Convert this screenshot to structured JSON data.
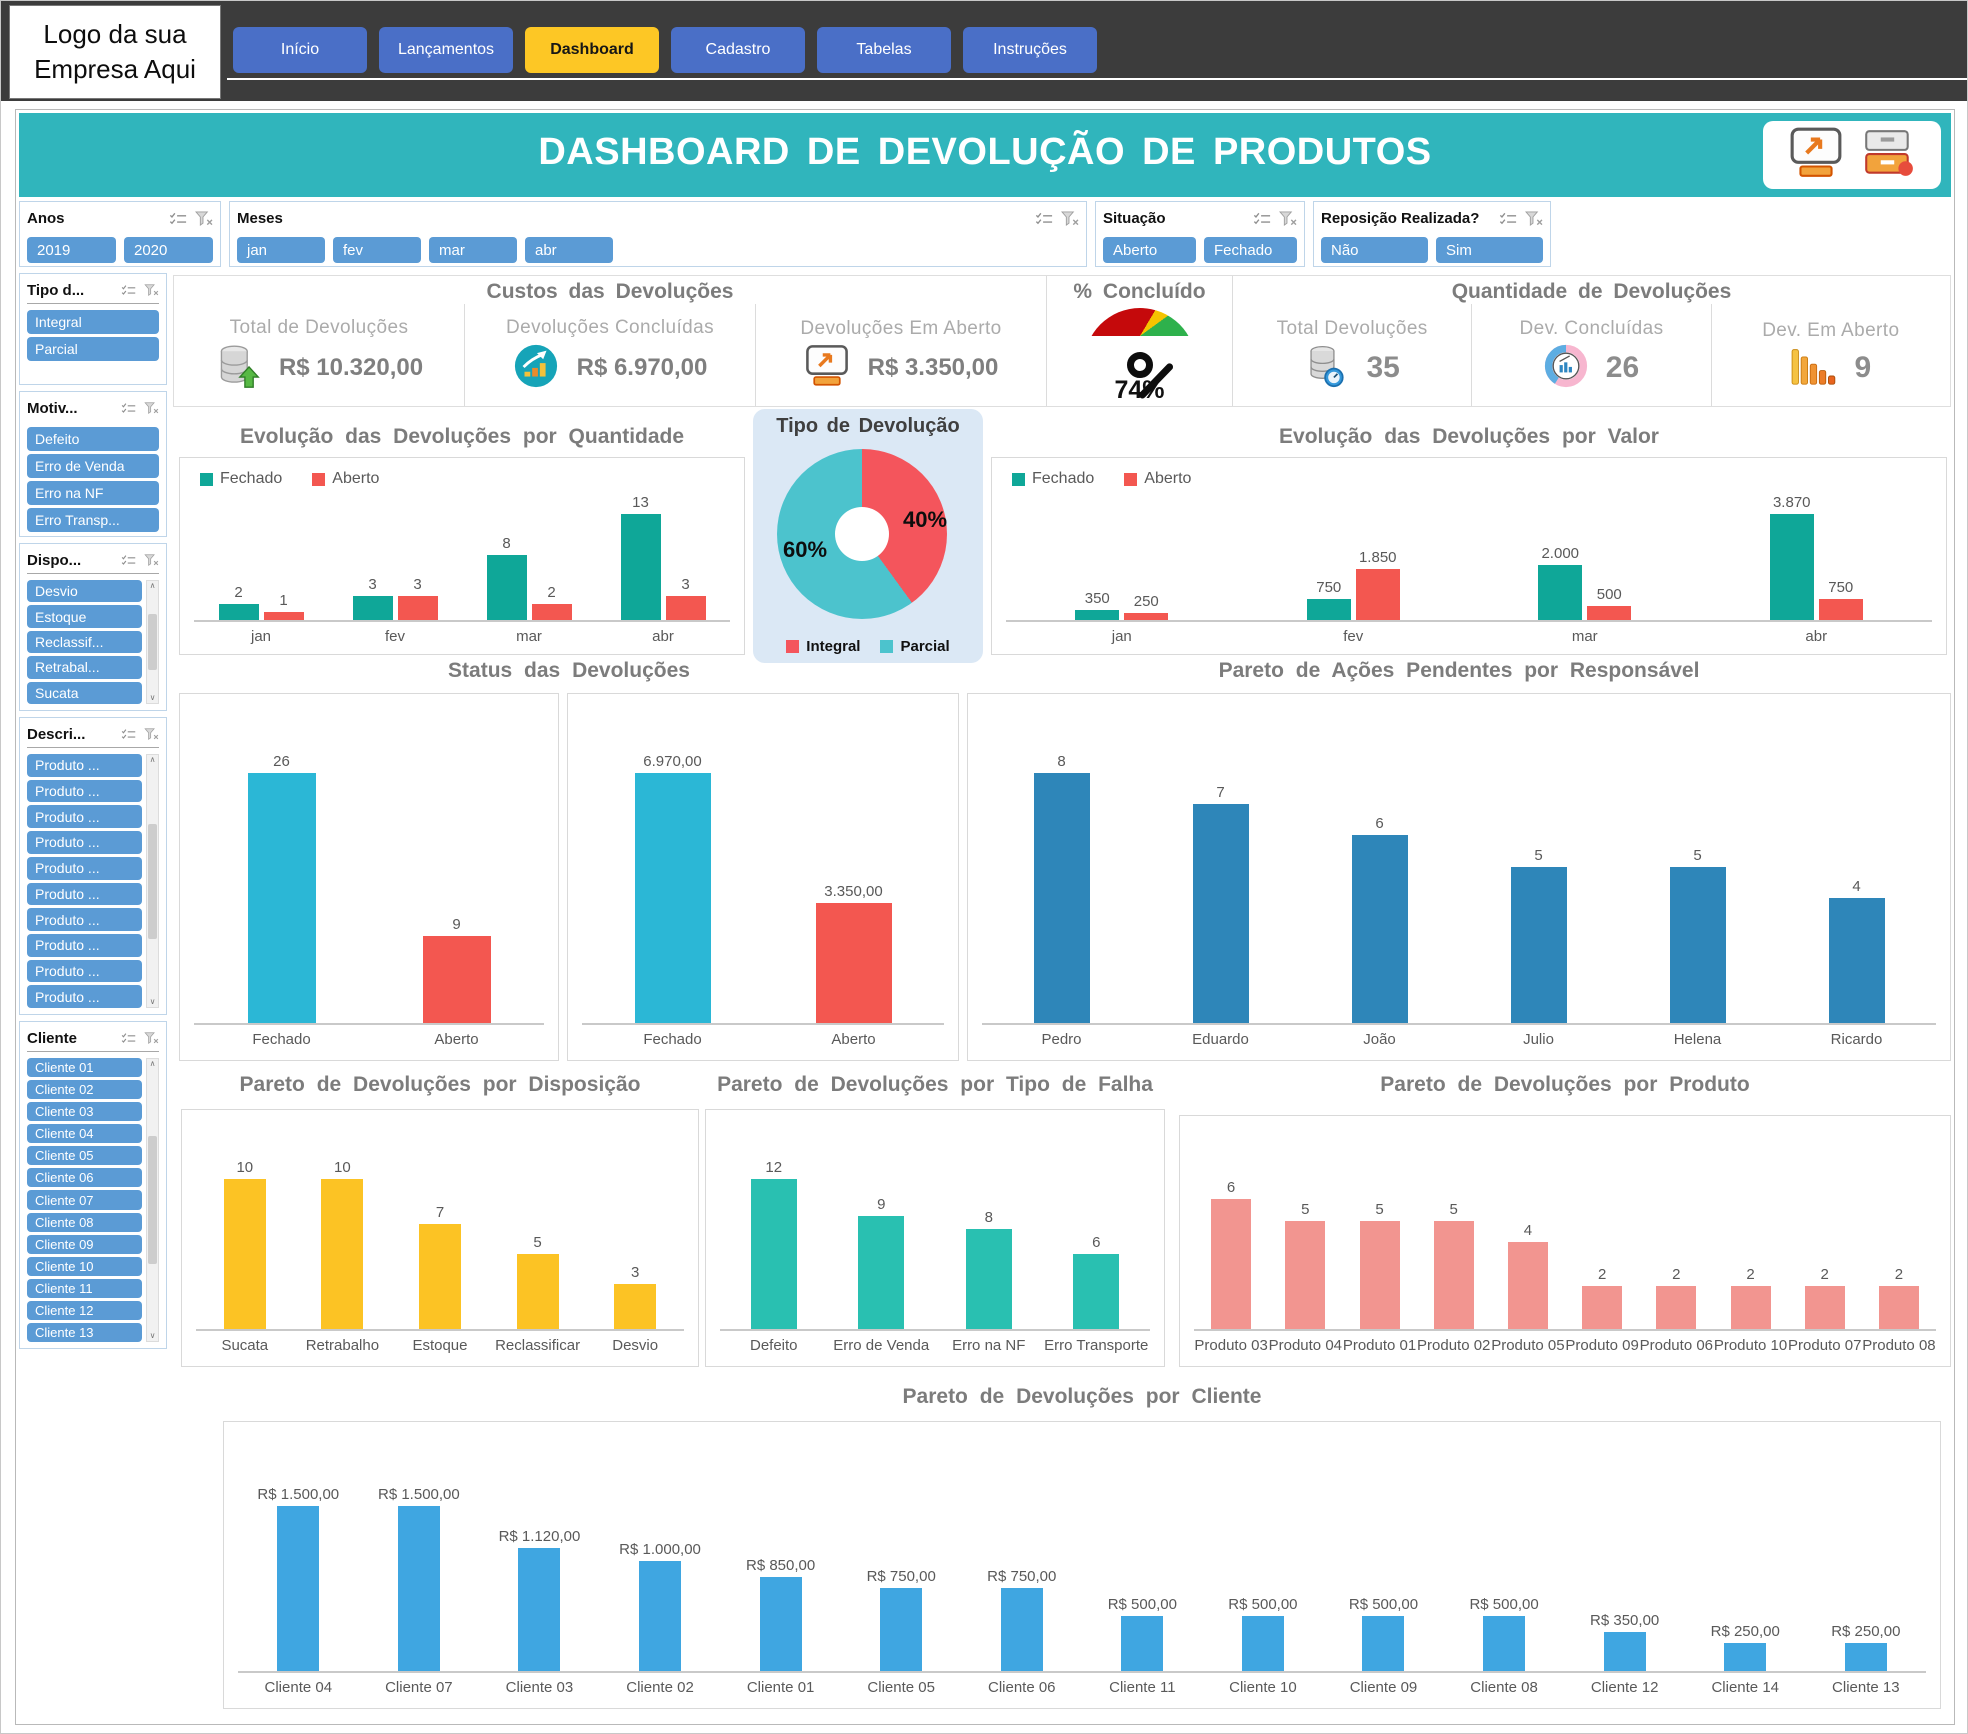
{
  "header": {
    "logo_line1": "Logo da sua",
    "logo_line2": "Empresa Aqui",
    "tabs": [
      {
        "label": "Início",
        "active": false
      },
      {
        "label": "Lançamentos",
        "active": false
      },
      {
        "label": "Dashboard",
        "active": true
      },
      {
        "label": "Cadastro",
        "active": false
      },
      {
        "label": "Tabelas",
        "active": false
      },
      {
        "label": "Instruções",
        "active": false
      }
    ]
  },
  "banner": {
    "title": "DASHBOARD DE DEVOLUÇÃO DE PRODUTOS",
    "color": "#30b5bc",
    "icons": [
      "monitor-arrow-icon",
      "drawer-cabinet-icon"
    ]
  },
  "filters": {
    "anos": {
      "title": "Anos",
      "items": [
        "2019",
        "2020"
      ]
    },
    "meses": {
      "title": "Meses",
      "items": [
        "jan",
        "fev",
        "mar",
        "abr"
      ]
    },
    "situacao": {
      "title": "Situação",
      "items": [
        "Aberto",
        "Fechado"
      ]
    },
    "reposicao": {
      "title": "Reposição Realizada?",
      "items": [
        "Não",
        "Sim"
      ]
    }
  },
  "sidebar": {
    "tipo": {
      "title": "Tipo d...",
      "items": [
        "Integral",
        "Parcial"
      ]
    },
    "motivo": {
      "title": "Motiv...",
      "items": [
        "Defeito",
        "Erro de Venda",
        "Erro na NF",
        "Erro Transp..."
      ]
    },
    "disposicao": {
      "title": "Dispo...",
      "items": [
        "Desvio",
        "Estoque",
        "Reclassif...",
        "Retrabal...",
        "Sucata"
      ]
    },
    "descricao": {
      "title": "Descri...",
      "items": [
        "Produto ...",
        "Produto ...",
        "Produto ...",
        "Produto ...",
        "Produto ...",
        "Produto ...",
        "Produto ...",
        "Produto ...",
        "Produto ...",
        "Produto ..."
      ]
    },
    "cliente": {
      "title": "Cliente",
      "items": [
        "Cliente 01",
        "Cliente 02",
        "Cliente 03",
        "Cliente 04",
        "Cliente 05",
        "Cliente 06",
        "Cliente 07",
        "Cliente 08",
        "Cliente 09",
        "Cliente 10",
        "Cliente 11",
        "Cliente 12",
        "Cliente 13"
      ]
    }
  },
  "kpis": {
    "custos": {
      "title": "Custos das Devoluções",
      "cards": [
        {
          "label": "Total de Devoluções",
          "value": "R$ 10.320,00",
          "icon": "database-up-icon"
        },
        {
          "label": "Devoluções Concluídas",
          "value": "R$ 6.970,00",
          "icon": "growth-chart-icon"
        },
        {
          "label": "Devoluções Em Aberto",
          "value": "R$ 3.350,00",
          "icon": "monitor-arrow-icon"
        }
      ]
    },
    "concluido": {
      "title": "% Concluído",
      "value": "74%",
      "gauge_colors": [
        "#c5090b",
        "#f5c400",
        "#2eb14c"
      ]
    },
    "quantidade": {
      "title": "Quantidade de Devoluções",
      "cards": [
        {
          "label": "Total Devoluções",
          "value": "35",
          "icon": "database-gauge-icon"
        },
        {
          "label": "Dev. Concluídas",
          "value": "26",
          "icon": "donut-chart-icon"
        },
        {
          "label": "Dev. Em Aberto",
          "value": "9",
          "icon": "declining-bars-icon"
        }
      ]
    }
  },
  "charts": {
    "evolucao_qtd": {
      "type": "bar",
      "title": "Evolução das Devoluções por Quantidade",
      "show_legend": true,
      "categories": [
        "jan",
        "fev",
        "mar",
        "abr"
      ],
      "series": [
        {
          "name": "Fechado",
          "color": "#0fa798",
          "values": [
            2,
            3,
            8,
            13
          ],
          "labels": [
            "2",
            "3",
            "8",
            "13"
          ]
        },
        {
          "name": "Aberto",
          "color": "#f35750",
          "values": [
            1,
            3,
            2,
            3
          ],
          "labels": [
            "1",
            "3",
            "2",
            "3"
          ]
        }
      ]
    },
    "tipo": {
      "type": "pie",
      "title": "Tipo de Devolução",
      "slices": [
        {
          "name": "Integral",
          "pct": 40,
          "label": "40%",
          "color": "#f4555c"
        },
        {
          "name": "Parcial",
          "pct": 60,
          "label": "60%",
          "color": "#4cc3cd"
        }
      ]
    },
    "evolucao_valor": {
      "type": "bar",
      "title": "Evolução das Devoluções por Valor",
      "show_legend": true,
      "categories": [
        "jan",
        "fev",
        "mar",
        "abr"
      ],
      "series": [
        {
          "name": "Fechado",
          "color": "#0fa798",
          "values": [
            350,
            750,
            2000,
            3870
          ],
          "labels": [
            "350",
            "750",
            "2.000",
            "3.870"
          ]
        },
        {
          "name": "Aberto",
          "color": "#f35750",
          "values": [
            250,
            1850,
            500,
            750
          ],
          "labels": [
            "250",
            "1.850",
            "500",
            "750"
          ]
        }
      ]
    },
    "status_title": "Status das Devoluções",
    "status_qtd": {
      "type": "bar",
      "categories": [
        "Fechado",
        "Aberto"
      ],
      "values": [
        26,
        9
      ],
      "labels": [
        "26",
        "9"
      ],
      "colors": [
        "#2bb7d6",
        "#f35750"
      ]
    },
    "status_valor": {
      "type": "bar",
      "categories": [
        "Fechado",
        "Aberto"
      ],
      "values": [
        6970,
        3350
      ],
      "labels": [
        "6.970,00",
        "3.350,00"
      ],
      "colors": [
        "#2bb7d6",
        "#f35750"
      ]
    },
    "responsavel": {
      "type": "bar",
      "title": "Pareto de Ações Pendentes por Responsável",
      "categories": [
        "Pedro",
        "Eduardo",
        "João",
        "Julio",
        "Helena",
        "Ricardo"
      ],
      "values": [
        8,
        7,
        6,
        5,
        5,
        4
      ],
      "labels": [
        "8",
        "7",
        "6",
        "5",
        "5",
        "4"
      ],
      "color": "#2e86b9"
    },
    "disposicao": {
      "type": "bar",
      "title": "Pareto de Devoluções por Disposição",
      "categories": [
        "Sucata",
        "Retrabalho",
        "Estoque",
        "Reclassificar",
        "Desvio"
      ],
      "values": [
        10,
        10,
        7,
        5,
        3
      ],
      "labels": [
        "10",
        "10",
        "7",
        "5",
        "3"
      ],
      "color": "#fcc324"
    },
    "falha": {
      "type": "bar",
      "title": "Pareto de Devoluções por Tipo de Falha",
      "categories": [
        "Defeito",
        "Erro de Venda",
        "Erro na NF",
        "Erro Transporte"
      ],
      "values": [
        12,
        9,
        8,
        6
      ],
      "labels": [
        "12",
        "9",
        "8",
        "6"
      ],
      "color": "#29c0b1"
    },
    "produto": {
      "type": "bar",
      "title": "Pareto de Devoluções por Produto",
      "categories": [
        "Produto 03",
        "Produto 04",
        "Produto 01",
        "Produto 02",
        "Produto 05",
        "Produto 09",
        "Produto 06",
        "Produto 10",
        "Produto 07",
        "Produto 08"
      ],
      "values": [
        6,
        5,
        5,
        5,
        4,
        2,
        2,
        2,
        2,
        2
      ],
      "labels": [
        "6",
        "5",
        "5",
        "5",
        "4",
        "2",
        "2",
        "2",
        "2",
        "2"
      ],
      "color": "#f29590"
    },
    "cliente": {
      "type": "bar",
      "title": "Pareto de Devoluções por Cliente",
      "categories": [
        "Cliente 04",
        "Cliente 07",
        "Cliente 03",
        "Cliente 02",
        "Cliente 01",
        "Cliente 05",
        "Cliente 06",
        "Cliente 11",
        "Cliente 10",
        "Cliente 09",
        "Cliente 08",
        "Cliente 12",
        "Cliente 14",
        "Cliente 13"
      ],
      "values": [
        1500,
        1500,
        1120,
        1000,
        850,
        750,
        750,
        500,
        500,
        500,
        500,
        350,
        250,
        250
      ],
      "labels": [
        "R$ 1.500,00",
        "R$ 1.500,00",
        "R$ 1.120,00",
        "R$ 1.000,00",
        "R$ 850,00",
        "R$ 750,00",
        "R$ 750,00",
        "R$ 500,00",
        "R$ 500,00",
        "R$ 500,00",
        "R$ 500,00",
        "R$ 350,00",
        "R$ 250,00",
        "R$ 250,00"
      ],
      "color": "#3fa6e1"
    }
  }
}
